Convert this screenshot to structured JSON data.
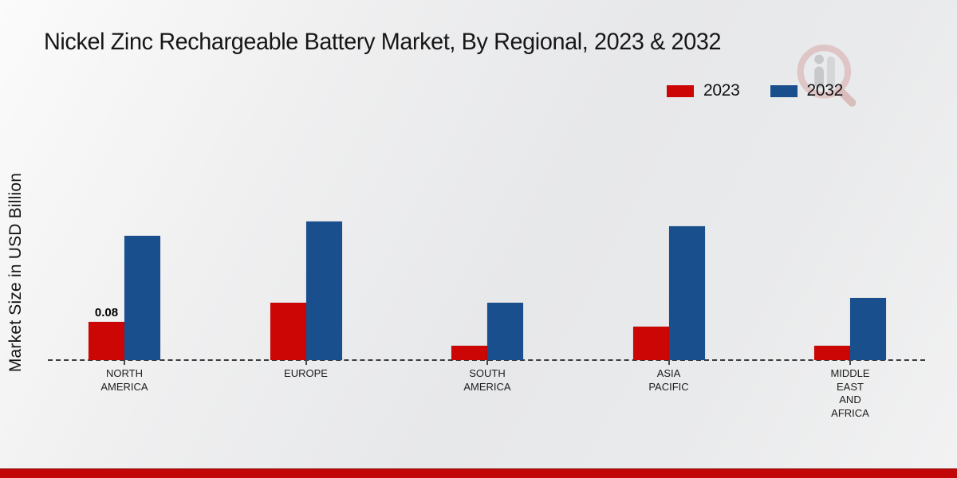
{
  "title": "Nickel Zinc Rechargeable Battery Market, By Regional, 2023 & 2032",
  "y_axis_label": "Market Size in USD Billion",
  "legend": [
    {
      "label": "2023",
      "color": "#cc0505"
    },
    {
      "label": "2032",
      "color": "#1a4f8e"
    }
  ],
  "colors": {
    "series_2023": "#cc0505",
    "series_2032": "#1a4f8e",
    "footer_band": "#c10707",
    "baseline": "#3c3c3c",
    "background": "#ebebec",
    "title_text": "#161616"
  },
  "watermark_icon": "magnifier-people-logo-watermark",
  "chart_data": {
    "type": "bar",
    "title": "Nickel Zinc Rechargeable Battery Market, By Regional, 2023 & 2032",
    "xlabel": "",
    "ylabel": "Market Size in USD Billion",
    "categories": [
      "NORTH AMERICA",
      "EUROPE",
      "SOUTH AMERICA",
      "ASIA PACIFIC",
      "MIDDLE EAST AND AFRICA"
    ],
    "category_lines": [
      [
        "NORTH",
        "AMERICA"
      ],
      [
        "EUROPE"
      ],
      [
        "SOUTH",
        "AMERICA"
      ],
      [
        "ASIA",
        "PACIFIC"
      ],
      [
        "MIDDLE",
        "EAST",
        "AND",
        "AFRICA"
      ]
    ],
    "series": [
      {
        "name": "2023",
        "color": "#cc0505",
        "values": [
          0.08,
          0.12,
          0.03,
          0.07,
          0.03
        ]
      },
      {
        "name": "2032",
        "color": "#1a4f8e",
        "values": [
          0.26,
          0.29,
          0.12,
          0.28,
          0.13
        ]
      }
    ],
    "bar_labels": [
      {
        "series_index": 0,
        "category_index": 0,
        "text": "0.08"
      }
    ],
    "ylim": [
      0,
      0.33
    ],
    "grid": false,
    "axis_style": "dashed-baseline-only",
    "legend_position": "top-right"
  }
}
